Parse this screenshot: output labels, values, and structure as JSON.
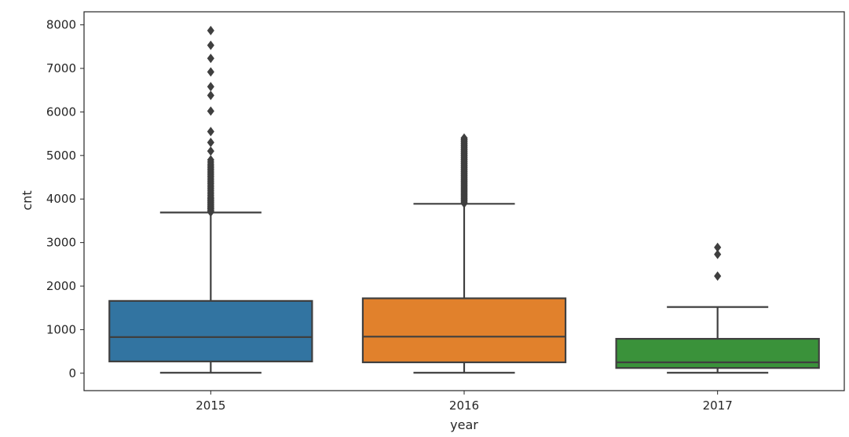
{
  "chart_data": {
    "type": "box",
    "title": "",
    "xlabel": "year",
    "ylabel": "cnt",
    "categories": [
      "2015",
      "2016",
      "2017"
    ],
    "ylim": [
      -400,
      8300
    ],
    "yticks": [
      0,
      1000,
      2000,
      3000,
      4000,
      5000,
      6000,
      7000,
      8000
    ],
    "yticklabels": [
      "0",
      "1000",
      "2000",
      "3000",
      "4000",
      "5000",
      "6000",
      "7000",
      "8000"
    ],
    "grid": false,
    "legend": "none",
    "boxes": [
      {
        "category": "2015",
        "color": "#3274a1",
        "whisker_low": 10,
        "q1": 270,
        "median": 830,
        "q3": 1660,
        "whisker_high": 3690,
        "outliers": [
          3700,
          3720,
          3750,
          3780,
          3800,
          3830,
          3860,
          3890,
          3920,
          3950,
          3980,
          4010,
          4040,
          4080,
          4120,
          4160,
          4200,
          4240,
          4280,
          4320,
          4360,
          4400,
          4440,
          4480,
          4520,
          4560,
          4600,
          4640,
          4680,
          4720,
          4760,
          4800,
          4850,
          4900,
          5100,
          5300,
          5550,
          6020,
          6380,
          6580,
          6920,
          7230,
          7530,
          7870
        ]
      },
      {
        "category": "2016",
        "color": "#e1812c",
        "whisker_low": 10,
        "q1": 250,
        "median": 840,
        "q3": 1720,
        "whisker_high": 3890,
        "outliers": [
          3900,
          3930,
          3960,
          3990,
          4020,
          4050,
          4080,
          4110,
          4140,
          4170,
          4200,
          4230,
          4260,
          4290,
          4320,
          4350,
          4380,
          4410,
          4440,
          4470,
          4500,
          4530,
          4560,
          4590,
          4620,
          4650,
          4680,
          4710,
          4740,
          4770,
          4800,
          4830,
          4860,
          4890,
          4920,
          4950,
          4980,
          5010,
          5040,
          5070,
          5100,
          5130,
          5160,
          5190,
          5220,
          5250,
          5280,
          5310,
          5340,
          5370,
          5400
        ]
      },
      {
        "category": "2017",
        "color": "#3a923a",
        "whisker_low": 10,
        "q1": 120,
        "median": 250,
        "q3": 790,
        "whisker_high": 1520,
        "outliers": [
          2230,
          2730,
          2890
        ]
      }
    ]
  }
}
